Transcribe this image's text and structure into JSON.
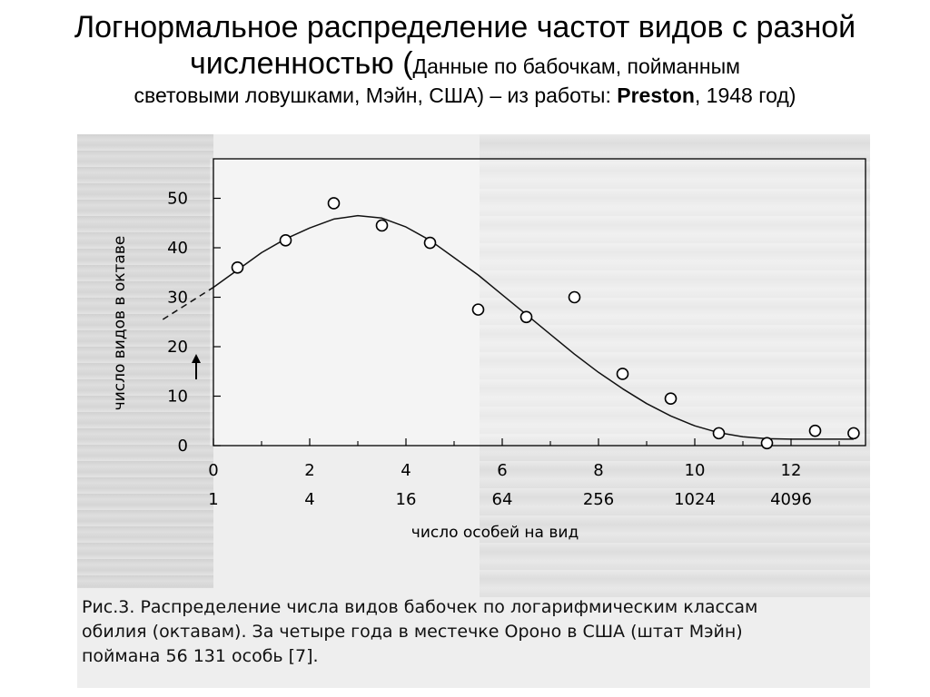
{
  "title": {
    "main": "Логнормальное распределение частот видов с разной численностью (",
    "paren": "Данные по бабочкам, пойманным",
    "line3_prefix": "световыми ловушками, Мэйн, США) – из работы: ",
    "author": "Preston",
    "line3_suffix": ", 1948 год)"
  },
  "chart_data": {
    "type": "scatter",
    "xlabel": "число особей на вид",
    "ylabel": "число видов в октаве",
    "xlim": [
      0,
      13
    ],
    "ylim": [
      0,
      55
    ],
    "x_ticks": [
      0,
      2,
      4,
      6,
      8,
      10,
      12
    ],
    "x_tick_labels": [
      "0",
      "2",
      "4",
      "6",
      "8",
      "10",
      "12"
    ],
    "x_secondary_labels": [
      "1",
      "4",
      "16",
      "64",
      "256",
      "1024",
      "4096"
    ],
    "y_ticks": [
      0,
      10,
      20,
      30,
      40,
      50
    ],
    "y_tick_labels": [
      "0",
      "10",
      "20",
      "30",
      "40",
      "50"
    ],
    "series": [
      {
        "type": "scatter",
        "x": [
          0.5,
          1.5,
          2.5,
          3.5,
          4.5,
          5.5,
          6.5,
          7.5,
          8.5,
          9.5,
          10.5,
          11.5,
          12.5,
          13.3
        ],
        "y": [
          36,
          41.5,
          49,
          44.5,
          41,
          27.5,
          26,
          30,
          14.5,
          9.5,
          2.5,
          0.5,
          3,
          2.5
        ]
      },
      {
        "type": "line",
        "style": "solid",
        "x": [
          0,
          0.5,
          1,
          1.5,
          2,
          2.5,
          3,
          3.5,
          4,
          4.5,
          5,
          5.5,
          6,
          6.5,
          7,
          7.5,
          8,
          8.5,
          9,
          9.5,
          10,
          10.5,
          11,
          11.5,
          12,
          12.5,
          13,
          13.3
        ],
        "y": [
          32,
          35.5,
          39,
          41.8,
          44,
          45.8,
          46.5,
          46,
          44.2,
          41.5,
          38,
          34.5,
          30.5,
          26.5,
          22.5,
          18.5,
          14.8,
          11.5,
          8.5,
          6,
          4,
          2.6,
          1.8,
          1.4,
          1.3,
          1.3,
          1.3,
          1.3
        ]
      },
      {
        "type": "line",
        "style": "dashed",
        "x": [
          -1.05,
          0
        ],
        "y": [
          25.5,
          32
        ]
      }
    ]
  },
  "caption": {
    "line1": "Рис.3. Распределение числа видов бабочек по логарифмическим классам",
    "line2": "обилия (октавам). За четыре года в местечке Ороно в США (штат Мэйн)",
    "line3": "поймана 56 131 особь [7]."
  }
}
